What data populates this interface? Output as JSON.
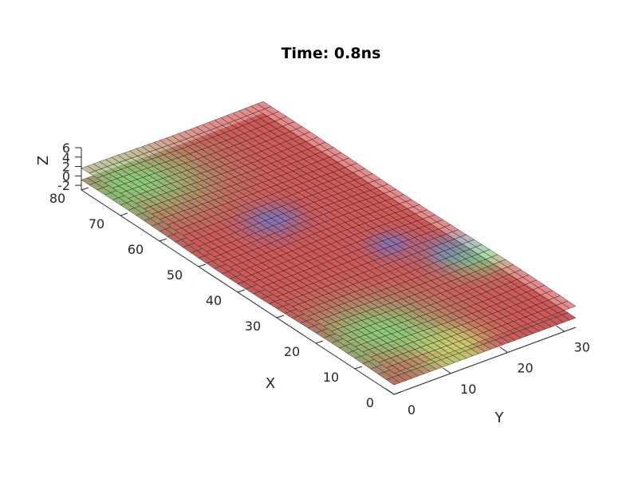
{
  "chart_data": {
    "type": "surface3d",
    "title": "Time: 0.8ns",
    "xlabel": "X",
    "ylabel": "Y",
    "zlabel": "Z",
    "xlim": [
      0,
      80
    ],
    "ylim": [
      0,
      32
    ],
    "zlim": [
      -3,
      6
    ],
    "xticks": [
      "0",
      "10",
      "20",
      "30",
      "40",
      "50",
      "60",
      "70",
      "80"
    ],
    "yticks": [
      "0",
      "10",
      "20",
      "30"
    ],
    "zticks": [
      "-2",
      "0",
      "2",
      "4",
      "6"
    ],
    "surfaces": [
      {
        "level": 1.5
      },
      {
        "level": -1.0
      }
    ],
    "colors": {
      "red": "#d85a5a",
      "green": "#8fd37c",
      "blue": "#7f78c8",
      "mesh": "#1a1a1a"
    }
  }
}
